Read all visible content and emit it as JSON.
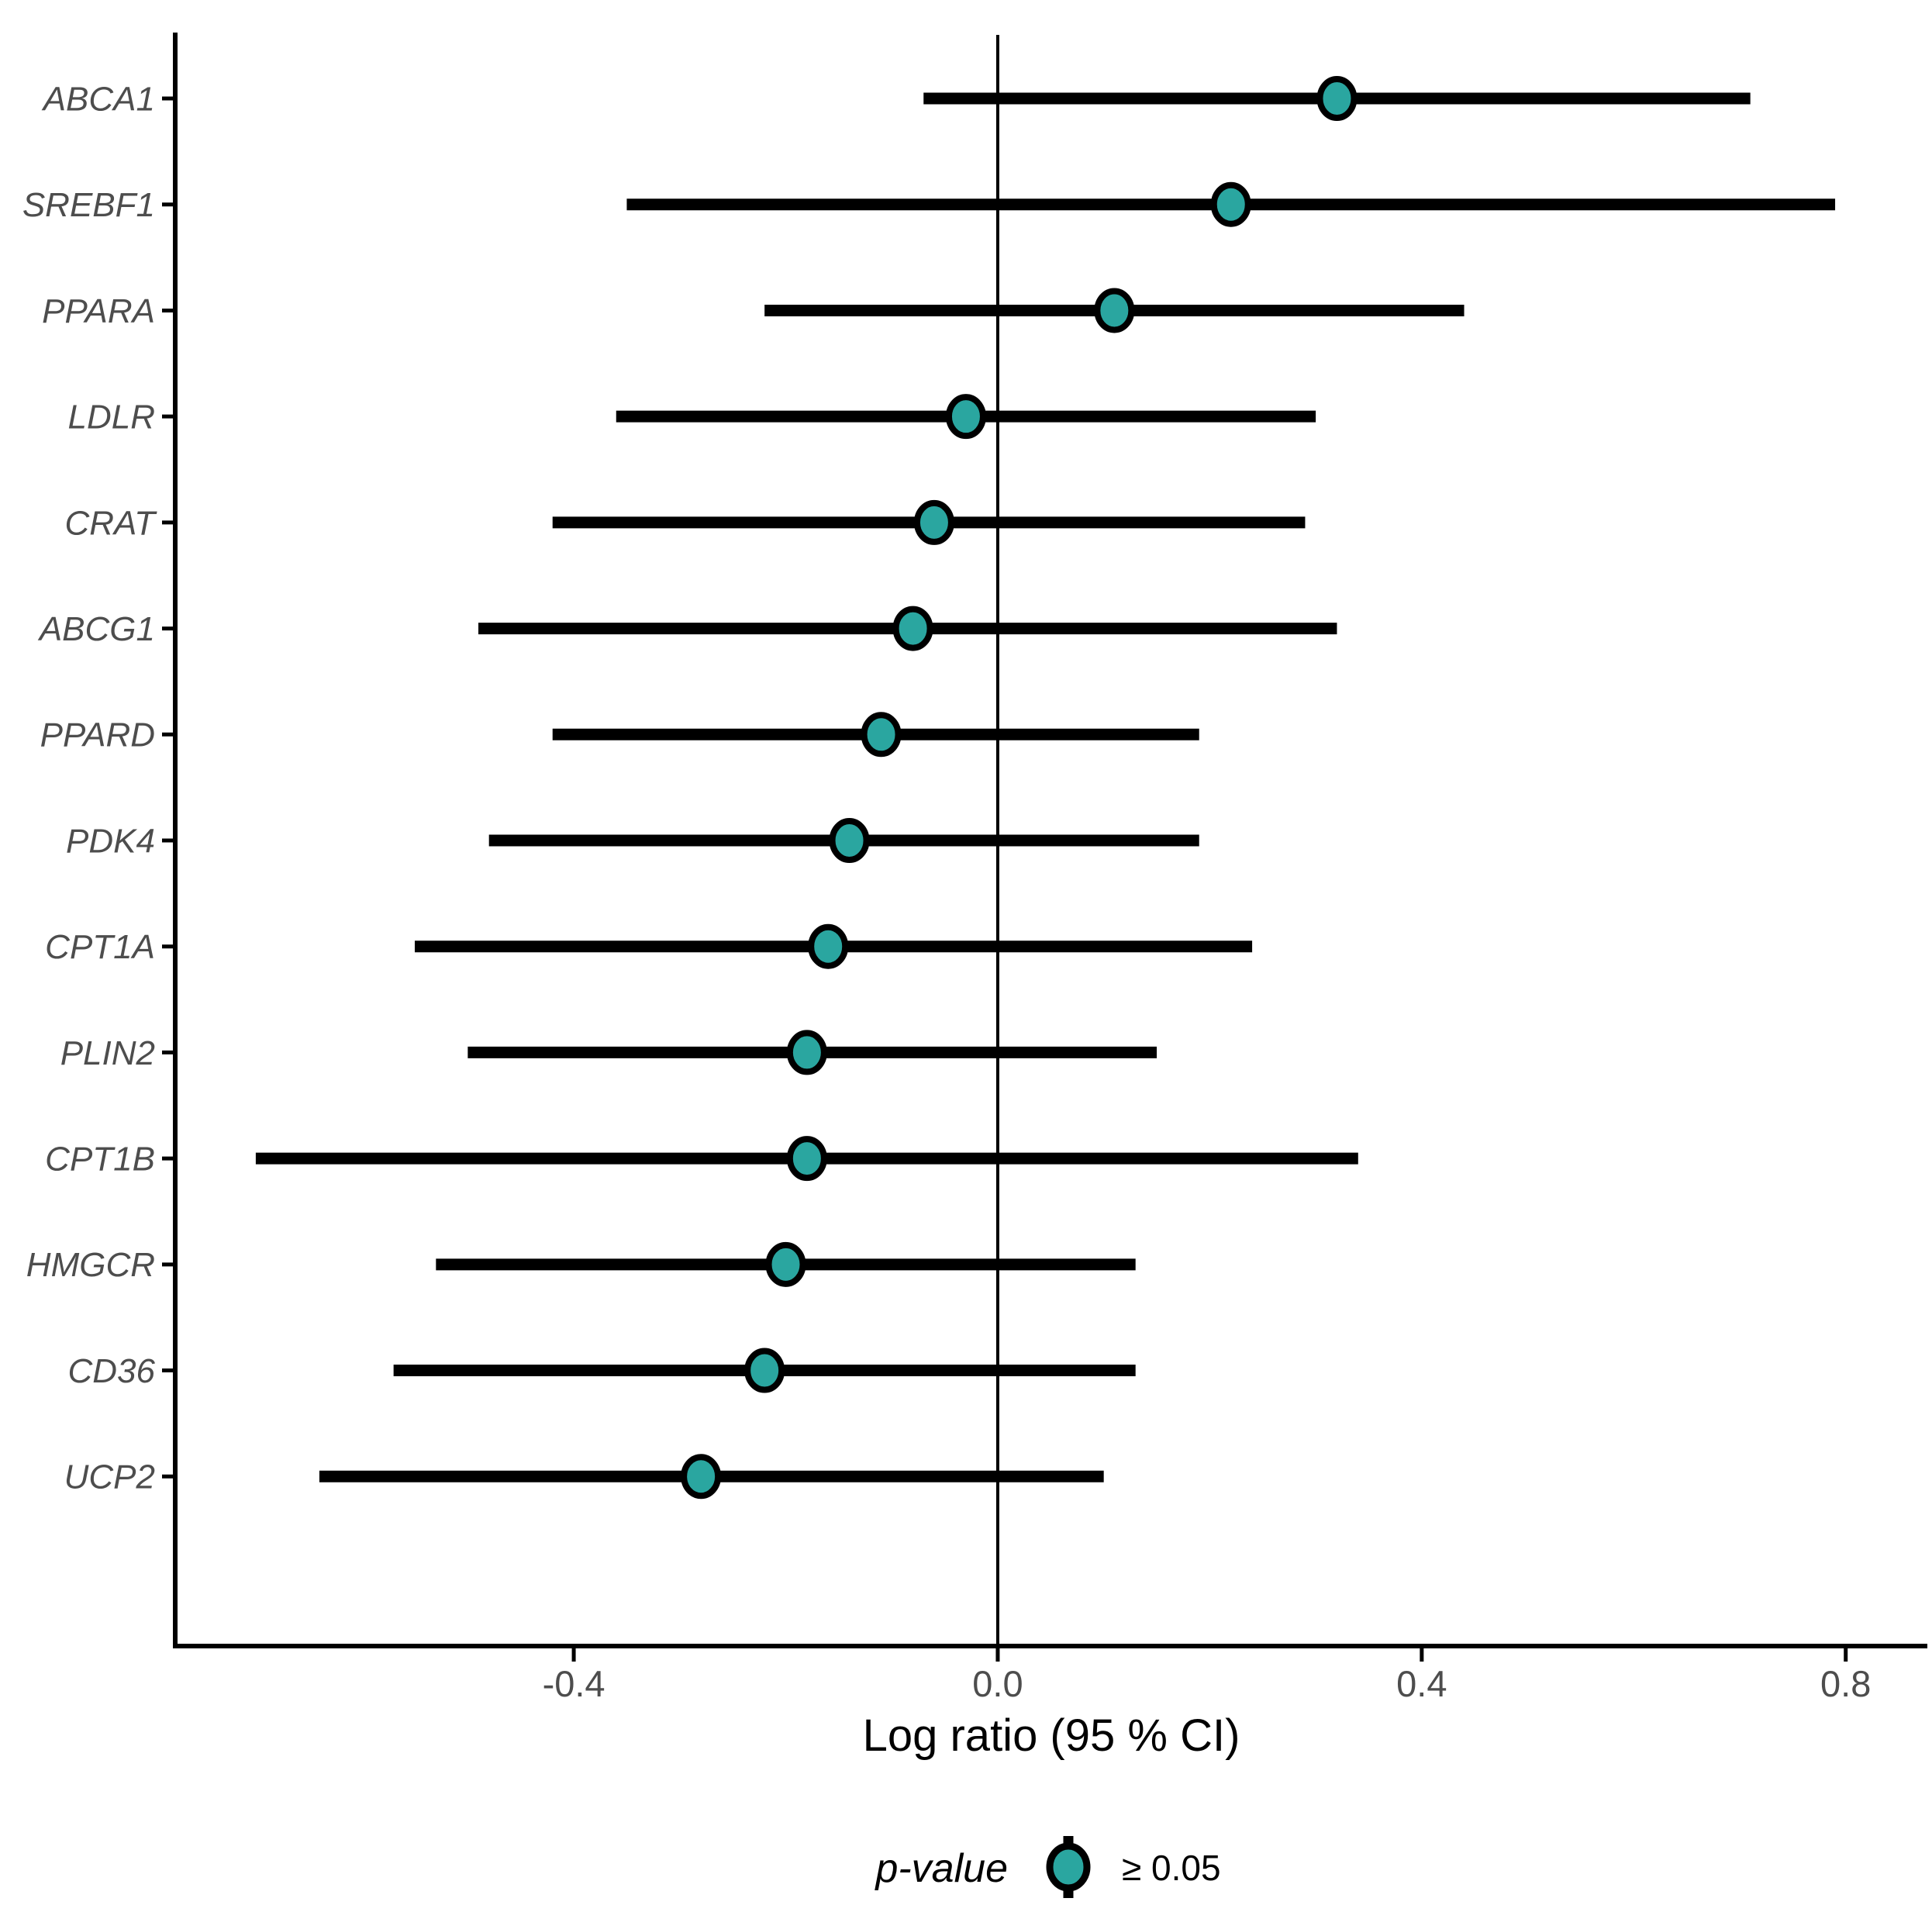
{
  "figure": {
    "xlabel": "Log ratio (95 % CI)",
    "legend_title": "p-value",
    "legend_entry_label": "≥ 0.05"
  },
  "chart_data": {
    "type": "forest",
    "orientation": "horizontal",
    "title": "",
    "xlabel": "Log ratio (95 % CI)",
    "ylabel": "",
    "categories": [
      "ABCA1",
      "SREBF1",
      "PPARA",
      "LDLR",
      "CRAT",
      "ABCG1",
      "PPARD",
      "PDK4",
      "CPT1A",
      "PLIN2",
      "CPT1B",
      "HMGCR",
      "CD36",
      "UCP2"
    ],
    "series": [
      {
        "gene": "ABCA1",
        "estimate": 0.32,
        "ci_low": -0.07,
        "ci_high": 0.71
      },
      {
        "gene": "SREBF1",
        "estimate": 0.22,
        "ci_low": -0.35,
        "ci_high": 0.79
      },
      {
        "gene": "PPARA",
        "estimate": 0.11,
        "ci_low": -0.22,
        "ci_high": 0.44
      },
      {
        "gene": "LDLR",
        "estimate": -0.03,
        "ci_low": -0.36,
        "ci_high": 0.3
      },
      {
        "gene": "CRAT",
        "estimate": -0.06,
        "ci_low": -0.42,
        "ci_high": 0.29
      },
      {
        "gene": "ABCG1",
        "estimate": -0.08,
        "ci_low": -0.49,
        "ci_high": 0.32
      },
      {
        "gene": "PPARD",
        "estimate": -0.11,
        "ci_low": -0.42,
        "ci_high": 0.19
      },
      {
        "gene": "PDK4",
        "estimate": -0.14,
        "ci_low": -0.48,
        "ci_high": 0.19
      },
      {
        "gene": "CPT1A",
        "estimate": -0.16,
        "ci_low": -0.55,
        "ci_high": 0.24
      },
      {
        "gene": "PLIN2",
        "estimate": -0.18,
        "ci_low": -0.5,
        "ci_high": 0.15
      },
      {
        "gene": "CPT1B",
        "estimate": -0.18,
        "ci_low": -0.7,
        "ci_high": 0.34
      },
      {
        "gene": "HMGCR",
        "estimate": -0.2,
        "ci_low": -0.53,
        "ci_high": 0.13
      },
      {
        "gene": "CD36",
        "estimate": -0.22,
        "ci_low": -0.57,
        "ci_high": 0.13
      },
      {
        "gene": "UCP2",
        "estimate": -0.28,
        "ci_low": -0.64,
        "ci_high": 0.1
      }
    ],
    "x_ticks": [
      -0.4,
      0.0,
      0.4,
      0.8
    ],
    "x_tick_labels": [
      "-0.4",
      "0.0",
      "0.4",
      "0.8"
    ],
    "xlim": [
      -0.776,
      0.877
    ],
    "reference_line_x": 0.0,
    "grid": false,
    "legend": {
      "title": "p-value",
      "position": "bottom",
      "entries": [
        {
          "label": "≥ 0.05",
          "marker": "circle-with-errorbar",
          "fill": "#2AA6A0",
          "stroke": "#000000"
        }
      ]
    },
    "colors": {
      "point_fill": "#2AA6A0",
      "point_stroke": "#000000",
      "errorbar": "#000000",
      "axis_line": "#000000",
      "axis_text": "#4D4D4D",
      "reference_line": "#000000",
      "background": "#FFFFFF"
    }
  }
}
